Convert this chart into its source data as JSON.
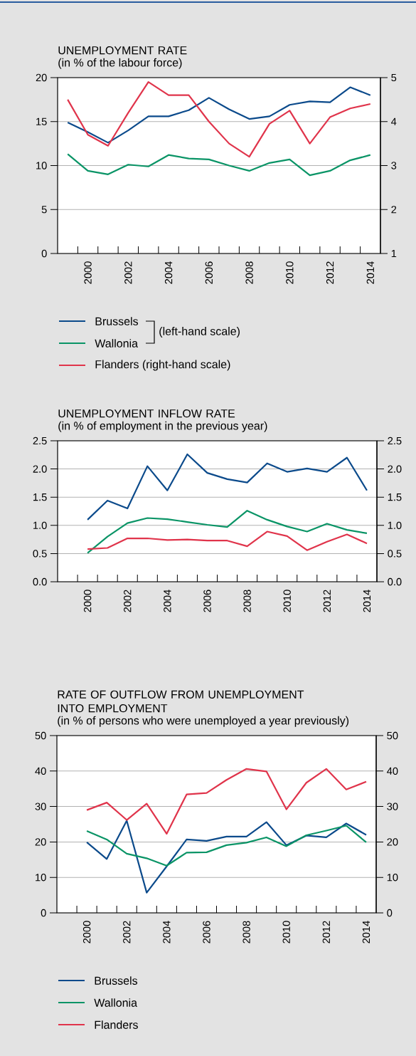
{
  "chart_data": [
    {
      "type": "line",
      "title": "UNEMPLOYMENT RATE",
      "subtitle": "(in % of the labour force)",
      "x": [
        1999,
        2000,
        2001,
        2002,
        2003,
        2004,
        2005,
        2006,
        2007,
        2008,
        2009,
        2010,
        2011,
        2012,
        2013,
        2014
      ],
      "series": [
        {
          "name": "Brussels",
          "color": "#0b4a8b",
          "values": [
            14.9,
            13.8,
            12.6,
            14.0,
            15.6,
            15.6,
            16.3,
            17.7,
            16.4,
            15.3,
            15.6,
            16.9,
            17.3,
            17.2,
            18.9,
            18.0
          ]
        },
        {
          "name": "Wallonia",
          "color": "#0a9466",
          "values": [
            11.3,
            9.4,
            9.0,
            10.1,
            9.9,
            11.2,
            10.8,
            10.7,
            10.0,
            9.4,
            10.3,
            10.7,
            8.9,
            9.4,
            10.6,
            11.2
          ]
        },
        {
          "name": "Flanders (right-hand scale)",
          "color": "#e0344b",
          "axis": "y2",
          "values": [
            4.5,
            3.7,
            3.45,
            4.2,
            4.9,
            4.6,
            4.6,
            4.0,
            3.5,
            3.2,
            3.95,
            4.25,
            3.5,
            4.1,
            4.3,
            4.4
          ]
        }
      ],
      "xlim": [
        1998.5,
        2014.5
      ],
      "xticks": [
        {
          "value": 1999.5,
          "label": null
        },
        2000,
        {
          "value": 2000.5,
          "label": null
        },
        {
          "value": 2001.5,
          "label": null
        },
        2002,
        {
          "value": 2002.5,
          "label": null
        },
        {
          "value": 2003.5,
          "label": null
        },
        2004,
        {
          "value": 2004.5,
          "label": null
        },
        {
          "value": 2005.5,
          "label": null
        },
        2006,
        {
          "value": 2006.5,
          "label": null
        },
        {
          "value": 2007.5,
          "label": null
        },
        2008,
        {
          "value": 2008.5,
          "label": null
        },
        {
          "value": 2009.5,
          "label": null
        },
        2010,
        {
          "value": 2010.5,
          "label": null
        },
        {
          "value": 2011.5,
          "label": null
        },
        2012,
        {
          "value": 2012.5,
          "label": null
        },
        {
          "value": 2013.5,
          "label": null
        },
        2014
      ],
      "ylim": [
        0,
        20
      ],
      "yticks": [
        0,
        5,
        10,
        15,
        20
      ],
      "y2lim": [
        1,
        5
      ],
      "y2ticks": [
        1,
        2,
        3,
        4,
        5
      ],
      "grid": "y",
      "legend": "bottom",
      "annotations": [
        "(left-hand scale)"
      ]
    },
    {
      "type": "line",
      "title": "UNEMPLOYMENT INFLOW RATE",
      "subtitle": "(in % of employment in the previous year)",
      "x": [
        2000,
        2001,
        2002,
        2003,
        2004,
        2005,
        2006,
        2007,
        2008,
        2009,
        2010,
        2011,
        2012,
        2013,
        2014
      ],
      "series": [
        {
          "color": "#0b4a8b",
          "values": [
            1.1,
            1.44,
            1.3,
            2.05,
            1.62,
            2.26,
            1.93,
            1.82,
            1.76,
            2.1,
            1.95,
            2.01,
            1.95,
            2.2,
            1.62
          ]
        },
        {
          "color": "#0a9466",
          "values": [
            0.51,
            0.8,
            1.04,
            1.13,
            1.11,
            1.06,
            1.01,
            0.97,
            1.26,
            1.1,
            0.98,
            0.89,
            1.03,
            0.92,
            0.86
          ]
        },
        {
          "color": "#e0344b",
          "values": [
            0.58,
            0.6,
            0.77,
            0.77,
            0.74,
            0.75,
            0.73,
            0.73,
            0.63,
            0.89,
            0.81,
            0.56,
            0.71,
            0.84,
            0.68
          ]
        }
      ],
      "xlim": [
        1998.5,
        2014.5
      ],
      "xticks": [
        {
          "value": 1999.5,
          "label": null
        },
        2000,
        {
          "value": 2000.5,
          "label": null
        },
        {
          "value": 2001.5,
          "label": null
        },
        2002,
        {
          "value": 2002.5,
          "label": null
        },
        {
          "value": 2003.5,
          "label": null
        },
        2004,
        {
          "value": 2004.5,
          "label": null
        },
        {
          "value": 2005.5,
          "label": null
        },
        2006,
        {
          "value": 2006.5,
          "label": null
        },
        {
          "value": 2007.5,
          "label": null
        },
        2008,
        {
          "value": 2008.5,
          "label": null
        },
        {
          "value": 2009.5,
          "label": null
        },
        2010,
        {
          "value": 2010.5,
          "label": null
        },
        {
          "value": 2011.5,
          "label": null
        },
        2012,
        {
          "value": 2012.5,
          "label": null
        },
        {
          "value": 2013.5,
          "label": null
        },
        2014
      ],
      "ylim": [
        0,
        2.5
      ],
      "yticks": [
        {
          "value": 0,
          "label": "0.0"
        },
        {
          "value": 0.5,
          "label": "0.5"
        },
        {
          "value": 1,
          "label": "1.0"
        },
        {
          "value": 1.5,
          "label": "1.5"
        },
        {
          "value": 2,
          "label": "2.0"
        },
        {
          "value": 2.5,
          "label": "2.5"
        }
      ],
      "y2lim": [
        0,
        2.5
      ],
      "y2ticks": [
        {
          "value": 0,
          "label": "0.0"
        },
        {
          "value": 0.5,
          "label": "0.5"
        },
        {
          "value": 1,
          "label": "1.0"
        },
        {
          "value": 1.5,
          "label": "1.5"
        },
        {
          "value": 2,
          "label": "2.0"
        },
        {
          "value": 2.5,
          "label": "2.5"
        }
      ],
      "grid": "y"
    },
    {
      "type": "line",
      "title": "RATE OF OUTFLOW FROM UNEMPLOYMENT INTO EMPLOYMENT",
      "subtitle": "(in % of persons who were unemployed a year previously)",
      "x": [
        2000,
        2001,
        2002,
        2003,
        2004,
        2005,
        2006,
        2007,
        2008,
        2009,
        2010,
        2011,
        2012,
        2013,
        2014
      ],
      "series": [
        {
          "name": "Brussels",
          "color": "#0b4a8b",
          "values": [
            19.9,
            15.2,
            26.0,
            5.7,
            13.1,
            20.7,
            20.3,
            21.5,
            21.5,
            25.6,
            19.1,
            21.8,
            21.3,
            25.2,
            22.0
          ]
        },
        {
          "name": "Wallonia",
          "color": "#0a9466",
          "values": [
            23.1,
            20.7,
            16.7,
            15.4,
            13.3,
            17.0,
            17.1,
            19.1,
            19.8,
            21.3,
            18.8,
            21.9,
            23.2,
            24.6,
            19.9
          ]
        },
        {
          "name": "Flanders",
          "color": "#e0344b",
          "values": [
            29.0,
            31.1,
            26.2,
            30.8,
            22.3,
            33.4,
            33.8,
            37.5,
            40.6,
            39.9,
            29.2,
            36.7,
            40.6,
            34.8,
            37.0
          ]
        }
      ],
      "xlim": [
        1998.5,
        2014.5
      ],
      "xticks": [
        {
          "value": 1999.5,
          "label": null
        },
        2000,
        {
          "value": 2000.5,
          "label": null
        },
        {
          "value": 2001.5,
          "label": null
        },
        2002,
        {
          "value": 2002.5,
          "label": null
        },
        {
          "value": 2003.5,
          "label": null
        },
        2004,
        {
          "value": 2004.5,
          "label": null
        },
        {
          "value": 2005.5,
          "label": null
        },
        2006,
        {
          "value": 2006.5,
          "label": null
        },
        {
          "value": 2007.5,
          "label": null
        },
        2008,
        {
          "value": 2008.5,
          "label": null
        },
        {
          "value": 2009.5,
          "label": null
        },
        2010,
        {
          "value": 2010.5,
          "label": null
        },
        {
          "value": 2011.5,
          "label": null
        },
        2012,
        {
          "value": 2012.5,
          "label": null
        },
        {
          "value": 2013.5,
          "label": null
        },
        2014
      ],
      "ylim": [
        0,
        50
      ],
      "yticks": [
        0,
        10,
        20,
        30,
        40,
        50
      ],
      "y2lim": [
        0,
        50
      ],
      "y2ticks": [
        0,
        10,
        20,
        30,
        40,
        50
      ],
      "grid": "y",
      "legend": "bottom"
    }
  ]
}
